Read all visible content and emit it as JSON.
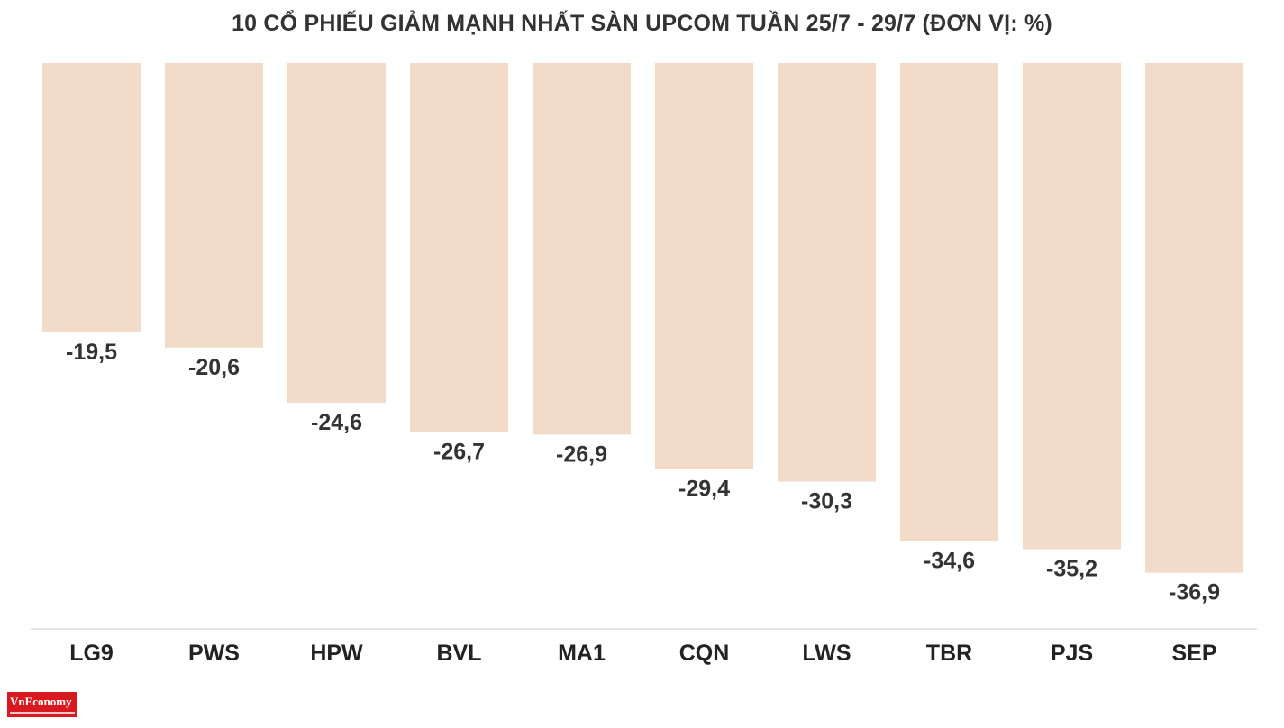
{
  "chart_data": {
    "type": "bar",
    "title": "10 CỔ PHIẾU GIẢM MẠNH NHẤT SÀN UPCOM TUẦN 25/7 - 29/7 (ĐƠN VỊ: %)",
    "categories": [
      "LG9",
      "PWS",
      "HPW",
      "BVL",
      "MA1",
      "CQN",
      "LWS",
      "TBR",
      "PJS",
      "SEP"
    ],
    "values": [
      -19.5,
      -20.6,
      -24.6,
      -26.7,
      -26.9,
      -29.4,
      -30.3,
      -34.6,
      -35.2,
      -36.9
    ],
    "value_labels": [
      "-19,5",
      "-20,6",
      "-24,6",
      "-26,7",
      "-26,9",
      "-29,4",
      "-30,3",
      "-34,6",
      "-35,2",
      "-36,9"
    ],
    "xlabel": "",
    "ylabel": "",
    "ylim": [
      -41,
      0
    ],
    "grid": false,
    "legend": "none",
    "bar_color": "#f2dbc8",
    "text_color": "#333333",
    "axis_color": "#dddddd"
  },
  "branding": {
    "logo_text": "VnEconomy",
    "logo_color": "#d71920"
  }
}
